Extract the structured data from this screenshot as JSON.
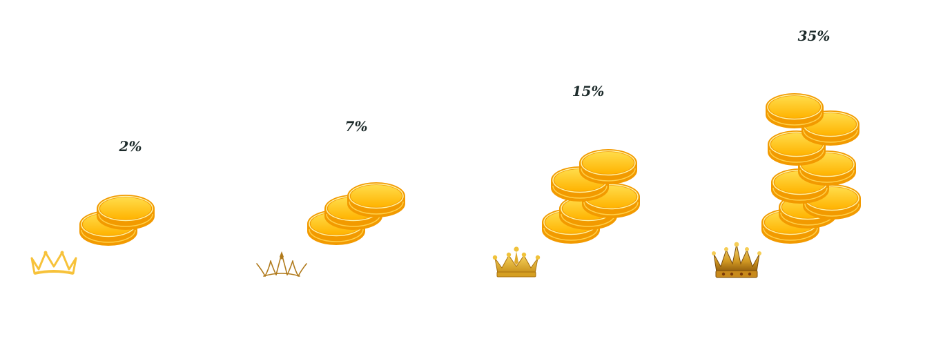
{
  "tiers": [
    {
      "percent": "2%",
      "crown_icon": "crown-outline-icon"
    },
    {
      "percent": "7%",
      "crown_icon": "crown-sketch-icon"
    },
    {
      "percent": "15%",
      "crown_icon": "crown-gold-icon"
    },
    {
      "percent": "35%",
      "crown_icon": "crown-jeweled-icon"
    }
  ],
  "colors": {
    "coin_face": "#ffc21a",
    "coin_edge": "#f29a00",
    "coin_rim": "#fff3a8",
    "crown_gold": "#e8b51c",
    "crown_dark": "#a8700f",
    "text": "#1c2a2a"
  }
}
